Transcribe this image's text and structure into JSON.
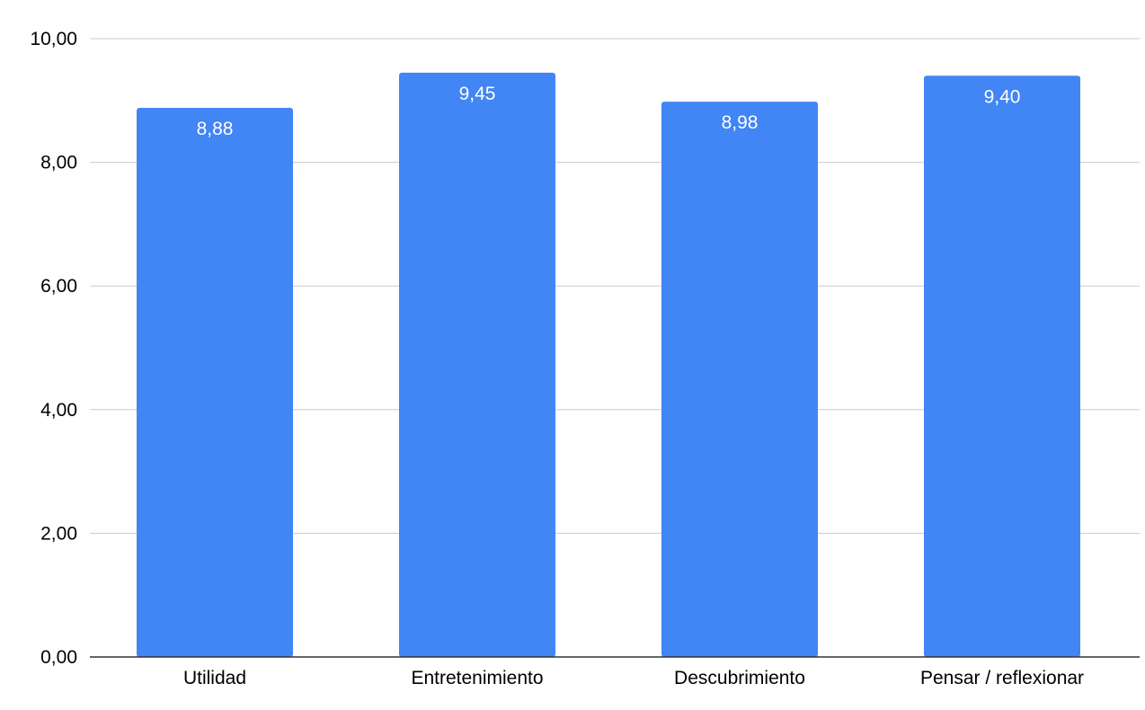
{
  "chart_data": {
    "type": "bar",
    "categories": [
      "Utilidad",
      "Entretenimiento",
      "Descubrimiento",
      "Pensar / reflexionar"
    ],
    "values": [
      8.88,
      9.45,
      8.98,
      9.4
    ],
    "data_labels": [
      "8,88",
      "9,45",
      "8,98",
      "9,40"
    ],
    "yticks": [
      0,
      2,
      4,
      6,
      8,
      10
    ],
    "ytick_labels": [
      "0,00",
      "2,00",
      "4,00",
      "6,00",
      "8,00",
      "10,00"
    ],
    "ylim": [
      0,
      10
    ],
    "grid": true,
    "legend": "none",
    "bar_color": "#4285F4",
    "title": "",
    "xlabel": "",
    "ylabel": ""
  }
}
